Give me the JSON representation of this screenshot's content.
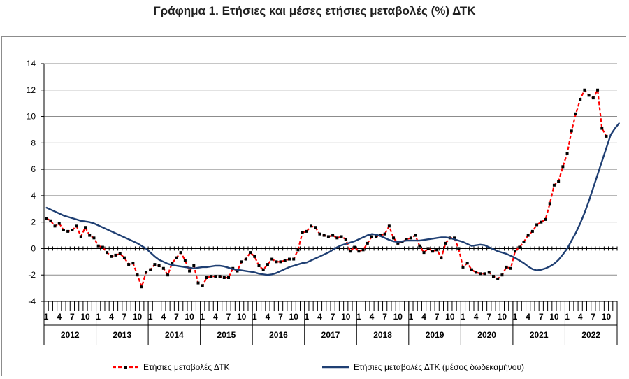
{
  "title": "Γράφημα 1. Ετήσιες και μέσες ετήσιες μεταβολές (%) ΔΤΚ",
  "chart_data": {
    "type": "line",
    "title": "Γράφημα 1. Ετήσιες και μέσες ετήσιες μεταβολές (%) ΔΤΚ",
    "xlabel": "",
    "ylabel": "",
    "ylim": [
      -4,
      14
    ],
    "yticks": [
      -4,
      -2,
      0,
      2,
      4,
      6,
      8,
      10,
      12,
      14
    ],
    "grid": true,
    "legend_position": "bottom",
    "x_start": "2012-01",
    "month_labels": [
      "1",
      "4",
      "7",
      "10"
    ],
    "years": [
      "2012",
      "2013",
      "2014",
      "2015",
      "2016",
      "2017",
      "2018",
      "2019",
      "2020",
      "2021",
      "2022"
    ],
    "series": [
      {
        "name": "Ετήσιες μεταβολές ΔΤΚ",
        "color": "#ff0000",
        "style": "dashed-markers",
        "values": [
          2.3,
          2.1,
          1.7,
          1.9,
          1.4,
          1.3,
          1.4,
          1.7,
          0.9,
          1.6,
          1.0,
          0.8,
          0.2,
          0.1,
          -0.3,
          -0.6,
          -0.5,
          -0.4,
          -0.7,
          -1.2,
          -1.1,
          -2.0,
          -2.9,
          -1.8,
          -1.6,
          -1.2,
          -1.3,
          -1.5,
          -2.0,
          -1.1,
          -0.7,
          -0.3,
          -0.9,
          -1.7,
          -1.3,
          -2.6,
          -2.8,
          -2.2,
          -2.1,
          -2.1,
          -2.1,
          -2.2,
          -2.2,
          -1.5,
          -1.7,
          -1.0,
          -0.8,
          -0.3,
          -0.6,
          -1.3,
          -1.6,
          -1.2,
          -0.8,
          -1.0,
          -1.0,
          -0.9,
          -0.8,
          -0.8,
          -0.1,
          1.2,
          1.3,
          1.7,
          1.6,
          1.1,
          1.0,
          0.9,
          1.0,
          0.8,
          0.9,
          0.7,
          -0.2,
          0.1,
          -0.2,
          -0.1,
          0.4,
          0.9,
          0.9,
          1.0,
          1.1,
          1.7,
          0.8,
          0.4,
          0.5,
          0.7,
          0.8,
          1.0,
          0.2,
          -0.3,
          0.0,
          -0.2,
          -0.1,
          -0.7,
          0.4,
          0.8,
          0.8,
          0.0,
          -1.4,
          -1.1,
          -1.6,
          -1.8,
          -1.9,
          -1.9,
          -1.8,
          -2.1,
          -2.3,
          -2.0,
          -1.4,
          -1.5,
          -0.2,
          0.1,
          0.5,
          1.0,
          1.3,
          1.8,
          2.0,
          2.2,
          3.4,
          4.8,
          5.1,
          6.2,
          7.2,
          8.9,
          10.2,
          11.3,
          12.0,
          11.6,
          11.4,
          12.0,
          9.1,
          8.5
        ]
      },
      {
        "name": "Ετήσιες μεταβολές ΔΤΚ (μέσος δωδεκαμήνου)",
        "color": "#1f3f73",
        "style": "solid",
        "values": [
          3.1,
          2.95,
          2.8,
          2.65,
          2.5,
          2.4,
          2.3,
          2.2,
          2.1,
          2.05,
          2.0,
          1.9,
          1.75,
          1.6,
          1.45,
          1.3,
          1.15,
          1.0,
          0.85,
          0.7,
          0.55,
          0.4,
          0.2,
          0.0,
          -0.3,
          -0.6,
          -0.85,
          -1.0,
          -1.15,
          -1.25,
          -1.3,
          -1.35,
          -1.4,
          -1.45,
          -1.5,
          -1.45,
          -1.4,
          -1.4,
          -1.35,
          -1.3,
          -1.3,
          -1.35,
          -1.45,
          -1.55,
          -1.6,
          -1.65,
          -1.7,
          -1.75,
          -1.8,
          -1.9,
          -1.95,
          -2.0,
          -1.95,
          -1.85,
          -1.7,
          -1.55,
          -1.4,
          -1.3,
          -1.2,
          -1.1,
          -1.05,
          -0.9,
          -0.75,
          -0.6,
          -0.45,
          -0.3,
          -0.1,
          0.1,
          0.25,
          0.35,
          0.45,
          0.55,
          0.7,
          0.85,
          1.0,
          1.1,
          1.05,
          0.95,
          0.8,
          0.65,
          0.55,
          0.5,
          0.55,
          0.6,
          0.6,
          0.6,
          0.6,
          0.65,
          0.7,
          0.75,
          0.8,
          0.85,
          0.85,
          0.8,
          0.7,
          0.6,
          0.5,
          0.35,
          0.2,
          0.25,
          0.3,
          0.25,
          0.1,
          -0.05,
          -0.2,
          -0.3,
          -0.4,
          -0.55,
          -0.7,
          -0.9,
          -1.1,
          -1.35,
          -1.55,
          -1.65,
          -1.6,
          -1.5,
          -1.35,
          -1.15,
          -0.85,
          -0.45,
          0.0,
          0.6,
          1.2,
          1.9,
          2.7,
          3.6,
          4.6,
          5.6,
          6.6,
          7.6,
          8.6,
          9.1,
          9.5
        ]
      }
    ]
  }
}
